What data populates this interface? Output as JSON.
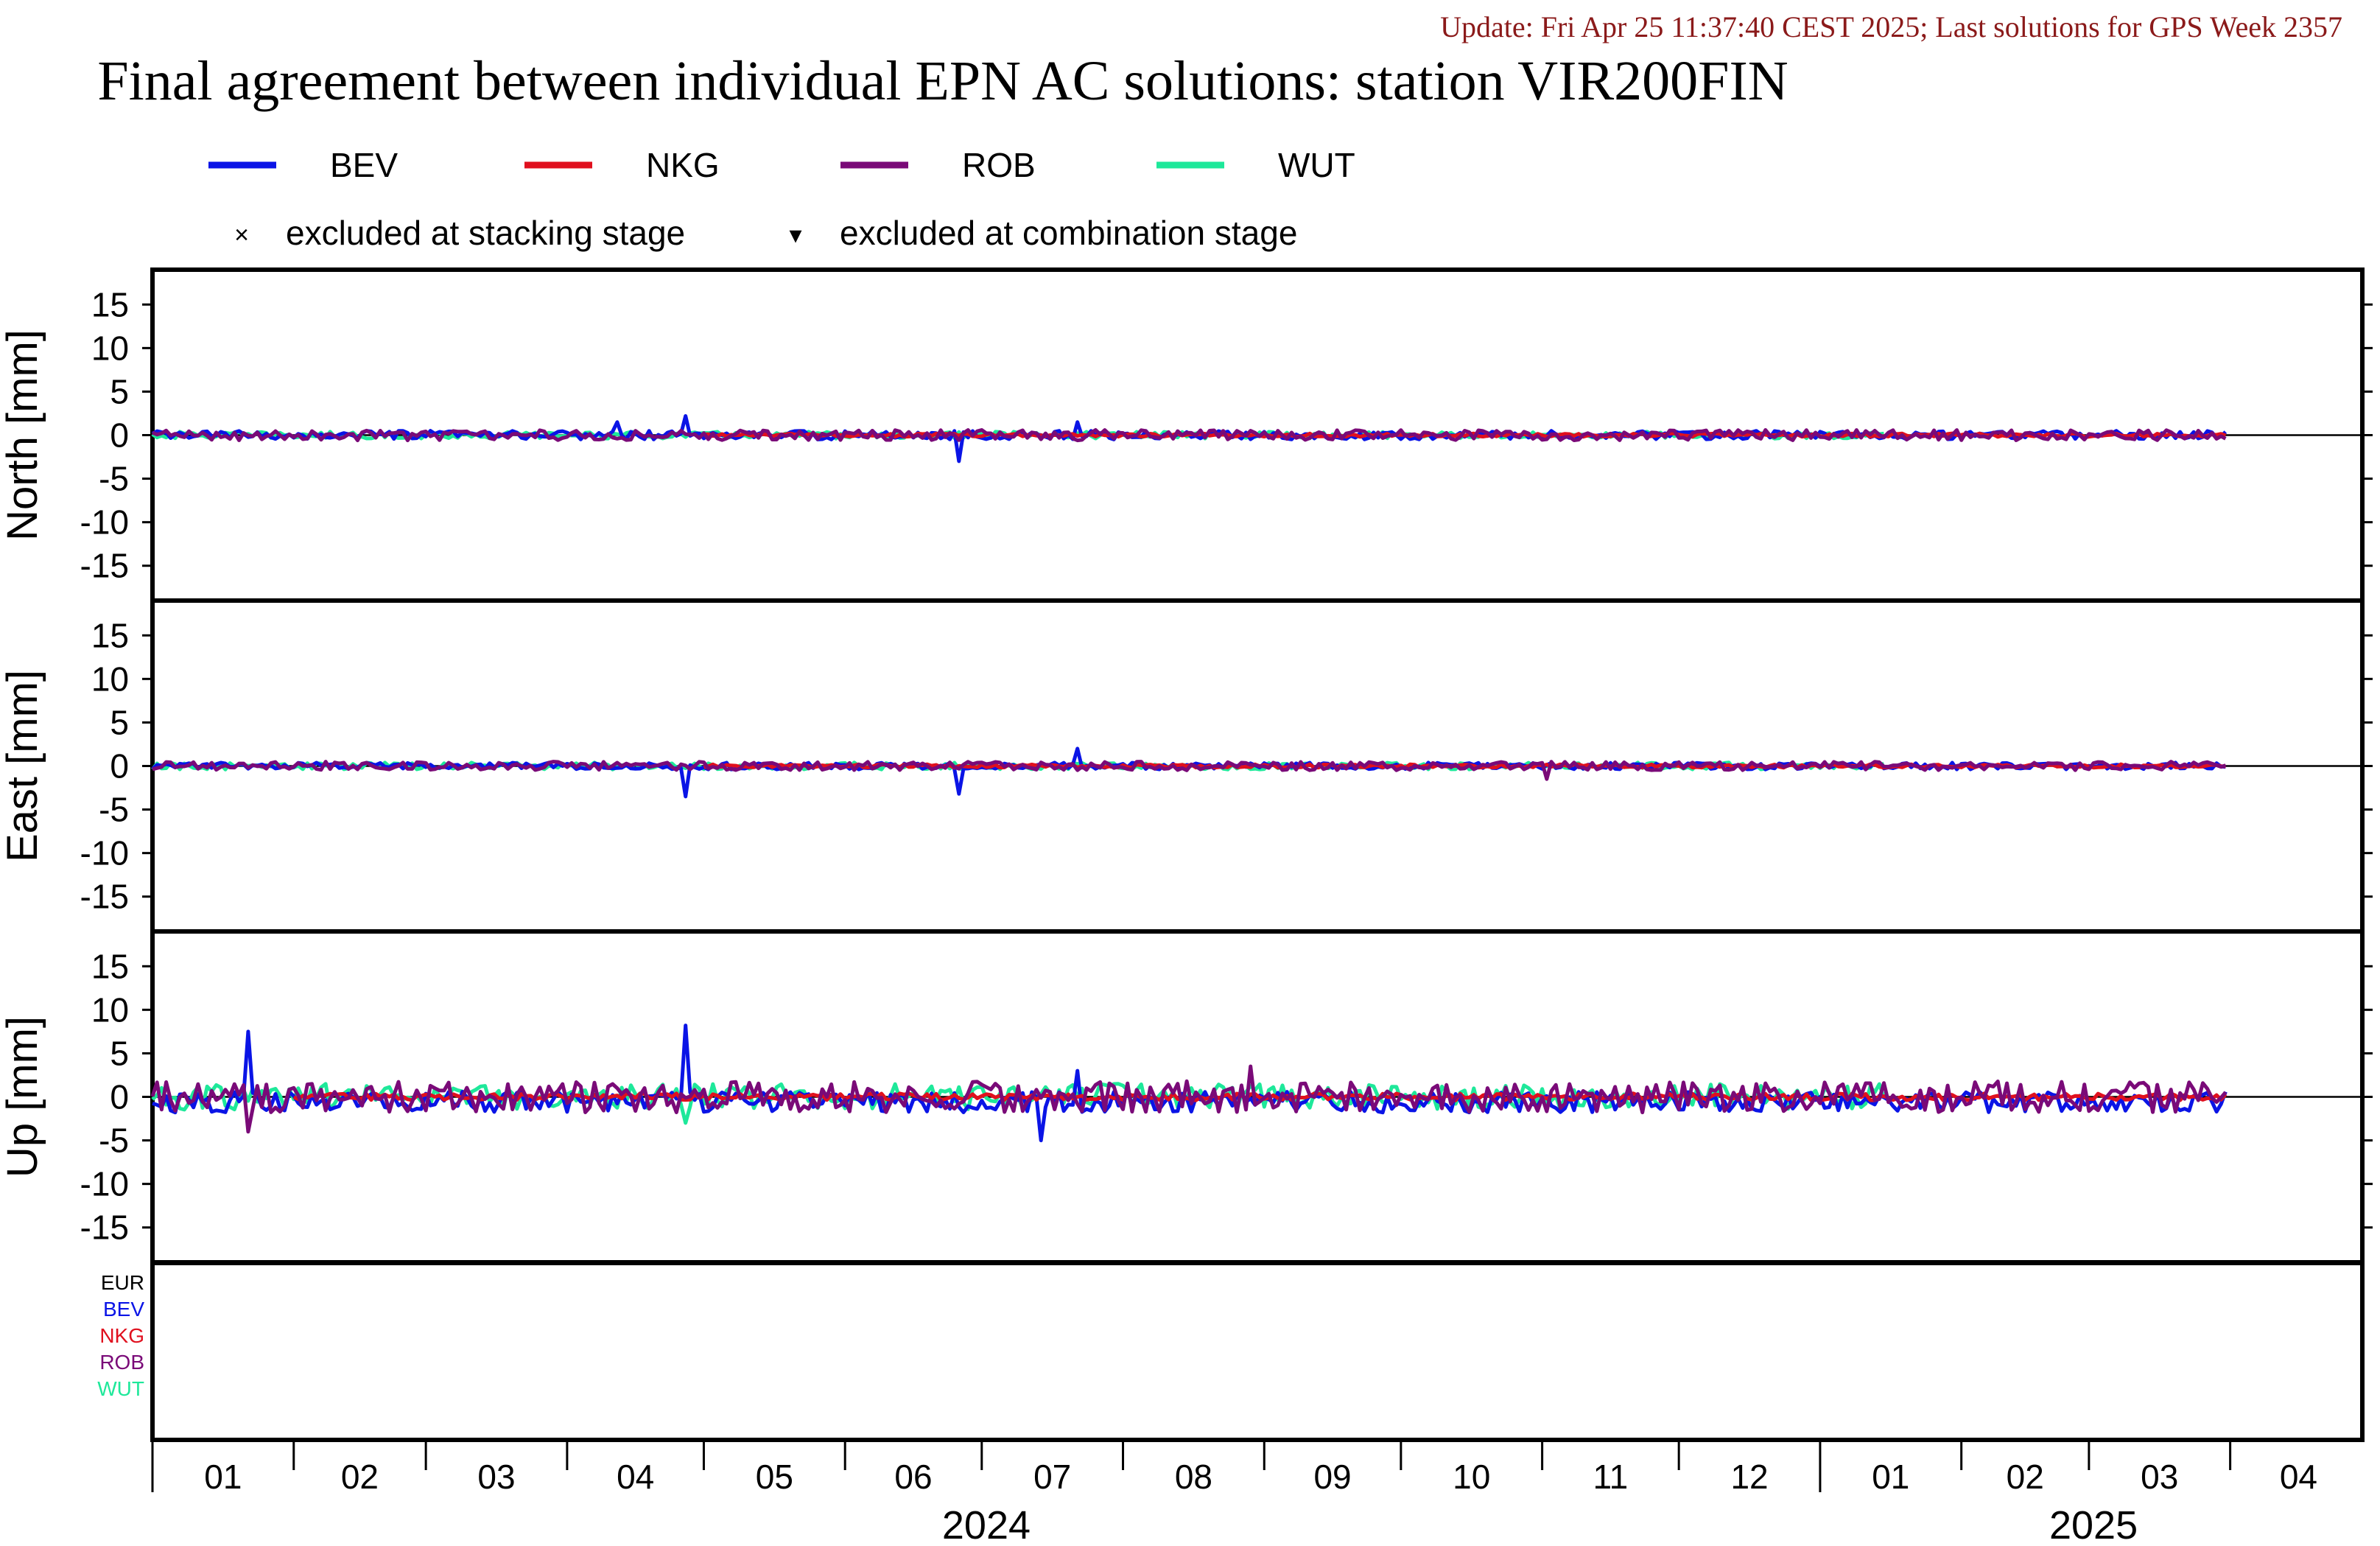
{
  "header": {
    "update_text": "Update: Fri Apr 25 11:37:40 CEST 2025; Last solutions for GPS Week 2357",
    "title": "Final agreement between individual EPN AC solutions: station VIR200FIN"
  },
  "legend": {
    "series": [
      {
        "name": "BEV",
        "color": "#0a14e6"
      },
      {
        "name": "NKG",
        "color": "#e0101e"
      },
      {
        "name": "ROB",
        "color": "#7a0a78"
      },
      {
        "name": "WUT",
        "color": "#1ee89a"
      }
    ],
    "markers": [
      {
        "symbol": "×",
        "label": "excluded at stacking stage"
      },
      {
        "symbol": "▾",
        "label": "excluded at combination stage"
      }
    ]
  },
  "availability": {
    "labels": [
      {
        "name": "EUR",
        "color": "#000000"
      },
      {
        "name": "BEV",
        "color": "#0a14e6"
      },
      {
        "name": "NKG",
        "color": "#e0101e"
      },
      {
        "name": "ROB",
        "color": "#7a0a78"
      },
      {
        "name": "WUT",
        "color": "#1ee89a"
      }
    ]
  },
  "x_axis": {
    "month_labels": [
      "01",
      "02",
      "03",
      "04",
      "05",
      "06",
      "07",
      "08",
      "09",
      "10",
      "11",
      "12",
      "01",
      "02",
      "03",
      "04"
    ],
    "year_labels": [
      "2024",
      "2025"
    ]
  },
  "chart_data": [
    {
      "type": "line",
      "ylabel": "North [mm]",
      "ylim": [
        -19,
        19
      ],
      "yticks": [
        15,
        10,
        5,
        0,
        -5,
        -10,
        -15
      ],
      "xlim": [
        "2024-01-01",
        "2025-04-30"
      ],
      "series": [
        {
          "name": "BEV",
          "x_range": [
            "2024-01-01",
            "2025-03-31"
          ],
          "typical_amplitude_mm": 0.5,
          "spikes": [
            {
              "date": "2024-04-27",
              "value": 2.2
            },
            {
              "date": "2024-06-26",
              "value": -3.0
            },
            {
              "date": "2024-07-22",
              "value": 1.5
            },
            {
              "date": "2024-04-12",
              "value": 1.5
            }
          ]
        },
        {
          "name": "NKG",
          "x_range": [
            "2024-05-01",
            "2025-03-31"
          ],
          "typical_amplitude_mm": 0.2,
          "spikes": []
        },
        {
          "name": "ROB",
          "x_range": [
            "2024-01-01",
            "2025-03-31"
          ],
          "typical_amplitude_mm": 0.6,
          "spikes": []
        },
        {
          "name": "WUT",
          "x_range": [
            "2024-01-01",
            "2025-01-15"
          ],
          "typical_amplitude_mm": 0.4,
          "spikes": []
        }
      ]
    },
    {
      "type": "line",
      "ylabel": "East [mm]",
      "ylim": [
        -19,
        19
      ],
      "yticks": [
        15,
        10,
        5,
        0,
        -5,
        -10,
        -15
      ],
      "xlim": [
        "2024-01-01",
        "2025-04-30"
      ],
      "series": [
        {
          "name": "BEV",
          "x_range": [
            "2024-01-01",
            "2025-03-31"
          ],
          "typical_amplitude_mm": 0.4,
          "spikes": [
            {
              "date": "2024-04-27",
              "value": -3.5
            },
            {
              "date": "2024-06-26",
              "value": -3.2
            },
            {
              "date": "2024-07-22",
              "value": 2.0
            }
          ]
        },
        {
          "name": "NKG",
          "x_range": [
            "2024-05-01",
            "2025-03-31"
          ],
          "typical_amplitude_mm": 0.2,
          "spikes": []
        },
        {
          "name": "ROB",
          "x_range": [
            "2024-01-01",
            "2025-03-31"
          ],
          "typical_amplitude_mm": 0.5,
          "spikes": [
            {
              "date": "2024-11-02",
              "value": -1.5
            }
          ]
        },
        {
          "name": "WUT",
          "x_range": [
            "2024-01-01",
            "2025-01-15"
          ],
          "typical_amplitude_mm": 0.4,
          "spikes": []
        }
      ]
    },
    {
      "type": "line",
      "ylabel": "Up [mm]",
      "ylim": [
        -19,
        19
      ],
      "yticks": [
        15,
        10,
        5,
        0,
        -5,
        -10,
        -15
      ],
      "xlim": [
        "2024-01-01",
        "2025-04-30"
      ],
      "series": [
        {
          "name": "BEV",
          "x_range": [
            "2024-01-01",
            "2025-03-31"
          ],
          "typical_amplitude_mm": 1.2,
          "spikes": [
            {
              "date": "2024-01-22",
              "value": 7.5
            },
            {
              "date": "2024-04-27",
              "value": 8.2
            },
            {
              "date": "2024-07-14",
              "value": -5.0
            },
            {
              "date": "2024-07-22",
              "value": 3.0
            }
          ]
        },
        {
          "name": "NKG",
          "x_range": [
            "2024-02-01",
            "2025-03-31"
          ],
          "typical_amplitude_mm": 0.4,
          "spikes": []
        },
        {
          "name": "ROB",
          "x_range": [
            "2024-01-01",
            "2025-03-31"
          ],
          "typical_amplitude_mm": 1.8,
          "spikes": [
            {
              "date": "2024-08-29",
              "value": 3.5
            },
            {
              "date": "2024-01-22",
              "value": -4.0
            }
          ]
        },
        {
          "name": "WUT",
          "x_range": [
            "2024-01-01",
            "2025-01-15"
          ],
          "typical_amplitude_mm": 1.5,
          "spikes": [
            {
              "date": "2024-04-27",
              "value": -3.0
            }
          ]
        }
      ]
    }
  ]
}
